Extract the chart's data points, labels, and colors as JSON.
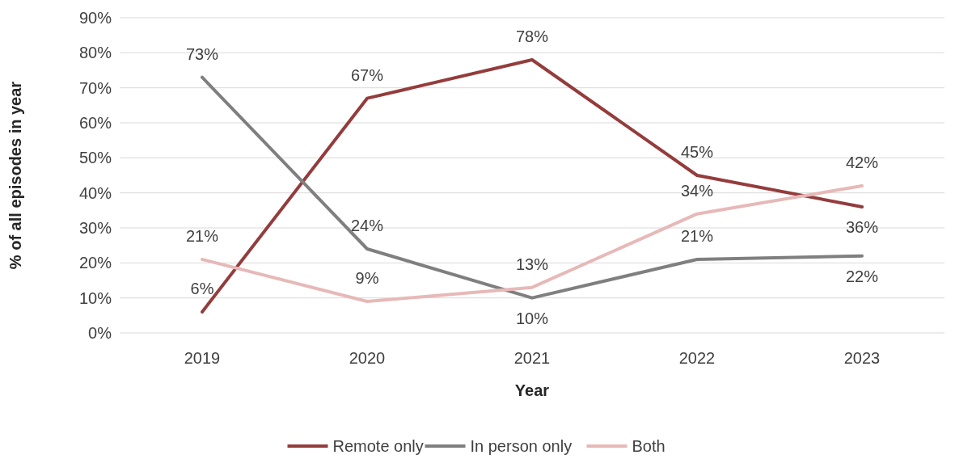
{
  "chart_data": {
    "type": "line",
    "xlabel": "Year",
    "ylabel": "% of all episodes in year",
    "categories": [
      "2019",
      "2020",
      "2021",
      "2022",
      "2023"
    ],
    "ylim": [
      0,
      90
    ],
    "yticks": [
      {
        "value": 0,
        "label": "0%"
      },
      {
        "value": 10,
        "label": "10%"
      },
      {
        "value": 20,
        "label": "20%"
      },
      {
        "value": 30,
        "label": "30%"
      },
      {
        "value": 40,
        "label": "40%"
      },
      {
        "value": 50,
        "label": "50%"
      },
      {
        "value": 60,
        "label": "60%"
      },
      {
        "value": 70,
        "label": "70%"
      },
      {
        "value": 80,
        "label": "80%"
      },
      {
        "value": 90,
        "label": "90%"
      }
    ],
    "grid": "y",
    "legend": "bottom",
    "marker": "none",
    "line_style": "solid",
    "series": [
      {
        "name": "Remote only",
        "color": "#943c3c",
        "values": [
          6,
          67,
          78,
          45,
          36
        ],
        "value_labels": [
          "6%",
          "67%",
          "78%",
          "45%",
          "36%"
        ]
      },
      {
        "name": "In person only",
        "color": "#7f7f7f",
        "values": [
          73,
          24,
          10,
          21,
          22
        ],
        "value_labels": [
          "73%",
          "24%",
          "10%",
          "21%",
          "22%"
        ]
      },
      {
        "name": "Both",
        "color": "#e6b9b8",
        "values": [
          21,
          9,
          13,
          34,
          42
        ],
        "value_labels": [
          "21%",
          "9%",
          "13%",
          "34%",
          "42%"
        ]
      }
    ]
  }
}
